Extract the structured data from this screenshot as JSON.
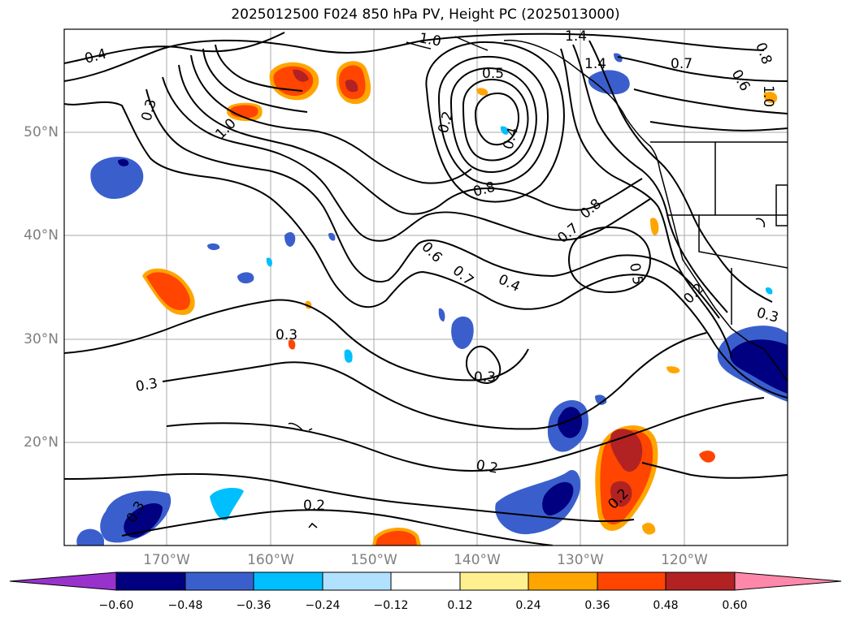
{
  "title": "2025012500 F024 850 hPa PV, Height PC (2025013000)",
  "latitudes": [
    "50°N",
    "40°N",
    "30°N",
    "20°N"
  ],
  "longitudes": [
    "170°W",
    "160°W",
    "150°W",
    "140°W",
    "130°W",
    "120°W"
  ],
  "contour_labels": [
    "0.4",
    "1.0",
    "0.5",
    "1.0",
    "1.4",
    "1.4",
    "0.7",
    "0.6",
    "0.8",
    "1.0",
    "0.3",
    "0.2",
    "0.4",
    "0.8",
    "0.7",
    "0.8",
    "0.5",
    "0.6",
    "0.7",
    "0.4",
    "0.2",
    "0.3",
    "0.3",
    "0.3",
    "0.3",
    "0.2",
    "0.2",
    "0.2",
    "0.3"
  ],
  "colorbar": {
    "ticks": [
      "−0.60",
      "−0.48",
      "−0.36",
      "−0.24",
      "−0.12",
      "0.12",
      "0.24",
      "0.36",
      "0.48",
      "0.60"
    ],
    "colors": [
      "#9932cc",
      "#000080",
      "#3a5fcd",
      "#00bfff",
      "#b0e2ff",
      "#ffffff",
      "#fff08f",
      "#ffa500",
      "#ff4500",
      "#b22222",
      "#ff88aa"
    ]
  }
}
